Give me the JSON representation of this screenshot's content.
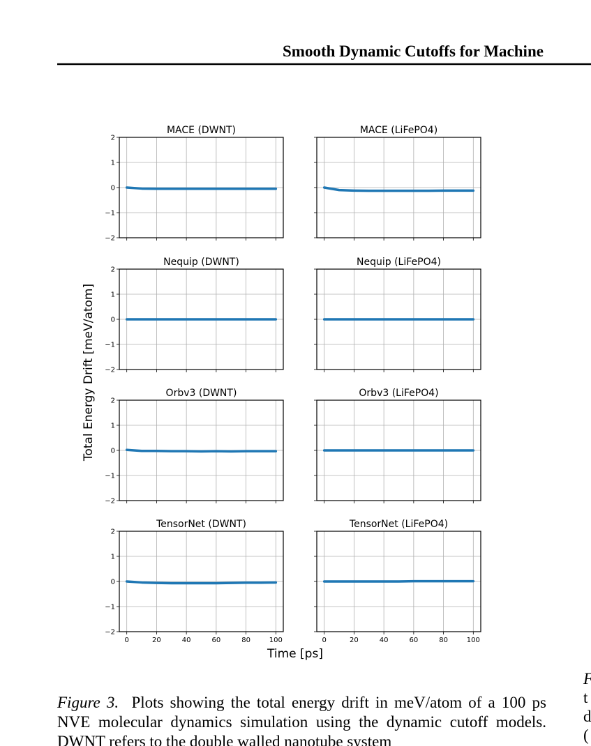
{
  "header": {
    "title": "Smooth Dynamic Cutoffs for Machine"
  },
  "figure": {
    "xlabel": "Time [ps]",
    "ylabel": "Total Energy Drift [meV/atom]"
  },
  "chart_data": [
    {
      "type": "line",
      "title": "MACE (DWNT)",
      "x": [
        0,
        10,
        20,
        30,
        40,
        50,
        60,
        70,
        80,
        90,
        100
      ],
      "series": [
        {
          "color": "#1f77b4",
          "values": [
            0,
            -0.04,
            -0.05,
            -0.05,
            -0.05,
            -0.05,
            -0.05,
            -0.05,
            -0.05,
            -0.05,
            -0.05
          ]
        }
      ],
      "xlim": [
        -5,
        105
      ],
      "ylim": [
        -2,
        2
      ],
      "xticks": [
        0,
        20,
        40,
        60,
        80,
        100
      ],
      "yticks": [
        {
          "value": -2,
          "label": "−2"
        },
        {
          "value": -1,
          "label": "−1"
        },
        0,
        1,
        2
      ],
      "grid": true,
      "show_xtick_labels": false,
      "show_ytick_labels": true
    },
    {
      "type": "line",
      "title": "MACE (LiFePO4)",
      "x": [
        0,
        10,
        20,
        30,
        40,
        50,
        60,
        70,
        80,
        90,
        100
      ],
      "series": [
        {
          "color": "#1f77b4",
          "values": [
            0,
            -0.1,
            -0.12,
            -0.13,
            -0.13,
            -0.13,
            -0.13,
            -0.13,
            -0.12,
            -0.12,
            -0.12
          ]
        }
      ],
      "xlim": [
        -5,
        105
      ],
      "ylim": [
        -2,
        2
      ],
      "xticks": [
        0,
        20,
        40,
        60,
        80,
        100
      ],
      "yticks": [
        {
          "value": -2,
          "label": "−2"
        },
        {
          "value": -1,
          "label": "−1"
        },
        0,
        1,
        2
      ],
      "grid": true,
      "show_xtick_labels": false,
      "show_ytick_labels": false
    },
    {
      "type": "line",
      "title": "Nequip (DWNT)",
      "x": [
        0,
        10,
        20,
        30,
        40,
        50,
        60,
        70,
        80,
        90,
        100
      ],
      "series": [
        {
          "color": "#1f77b4",
          "values": [
            0,
            0,
            0,
            0,
            0,
            0,
            0,
            0,
            0,
            0,
            0
          ]
        }
      ],
      "xlim": [
        -5,
        105
      ],
      "ylim": [
        -2,
        2
      ],
      "xticks": [
        0,
        20,
        40,
        60,
        80,
        100
      ],
      "yticks": [
        {
          "value": -2,
          "label": "−2"
        },
        {
          "value": -1,
          "label": "−1"
        },
        0,
        1,
        2
      ],
      "grid": true,
      "show_xtick_labels": false,
      "show_ytick_labels": true
    },
    {
      "type": "line",
      "title": "Nequip (LiFePO4)",
      "x": [
        0,
        10,
        20,
        30,
        40,
        50,
        60,
        70,
        80,
        90,
        100
      ],
      "series": [
        {
          "color": "#1f77b4",
          "values": [
            0,
            0,
            0,
            0,
            0,
            0,
            0,
            0,
            0,
            0,
            0
          ]
        }
      ],
      "xlim": [
        -5,
        105
      ],
      "ylim": [
        -2,
        2
      ],
      "xticks": [
        0,
        20,
        40,
        60,
        80,
        100
      ],
      "yticks": [
        {
          "value": -2,
          "label": "−2"
        },
        {
          "value": -1,
          "label": "−1"
        },
        0,
        1,
        2
      ],
      "grid": true,
      "show_xtick_labels": false,
      "show_ytick_labels": false
    },
    {
      "type": "line",
      "title": "Orbv3 (DWNT)",
      "x": [
        0,
        10,
        20,
        30,
        40,
        50,
        60,
        70,
        80,
        90,
        100
      ],
      "series": [
        {
          "color": "#1f77b4",
          "values": [
            0.02,
            -0.02,
            -0.02,
            -0.03,
            -0.03,
            -0.04,
            -0.03,
            -0.04,
            -0.03,
            -0.03,
            -0.03
          ]
        }
      ],
      "xlim": [
        -5,
        105
      ],
      "ylim": [
        -2,
        2
      ],
      "xticks": [
        0,
        20,
        40,
        60,
        80,
        100
      ],
      "yticks": [
        {
          "value": -2,
          "label": "−2"
        },
        {
          "value": -1,
          "label": "−1"
        },
        0,
        1,
        2
      ],
      "grid": true,
      "show_xtick_labels": false,
      "show_ytick_labels": true
    },
    {
      "type": "line",
      "title": "Orbv3 (LiFePO4)",
      "x": [
        0,
        10,
        20,
        30,
        40,
        50,
        60,
        70,
        80,
        90,
        100
      ],
      "series": [
        {
          "color": "#1f77b4",
          "values": [
            0,
            0,
            0,
            0,
            0,
            0,
            0,
            0,
            0,
            0,
            0
          ]
        }
      ],
      "xlim": [
        -5,
        105
      ],
      "ylim": [
        -2,
        2
      ],
      "xticks": [
        0,
        20,
        40,
        60,
        80,
        100
      ],
      "yticks": [
        {
          "value": -2,
          "label": "−2"
        },
        {
          "value": -1,
          "label": "−1"
        },
        0,
        1,
        2
      ],
      "grid": true,
      "show_xtick_labels": false,
      "show_ytick_labels": false
    },
    {
      "type": "line",
      "title": "TensorNet (DWNT)",
      "x": [
        0,
        10,
        20,
        30,
        40,
        50,
        60,
        70,
        80,
        90,
        100
      ],
      "series": [
        {
          "color": "#1f77b4",
          "values": [
            0,
            -0.04,
            -0.06,
            -0.07,
            -0.07,
            -0.07,
            -0.07,
            -0.06,
            -0.05,
            -0.05,
            -0.04
          ]
        }
      ],
      "xlim": [
        -5,
        105
      ],
      "ylim": [
        -2,
        2
      ],
      "xticks": [
        0,
        20,
        40,
        60,
        80,
        100
      ],
      "yticks": [
        {
          "value": -2,
          "label": "−2"
        },
        {
          "value": -1,
          "label": "−1"
        },
        0,
        1,
        2
      ],
      "grid": true,
      "show_xtick_labels": true,
      "show_ytick_labels": true
    },
    {
      "type": "line",
      "title": "TensorNet (LiFePO4)",
      "x": [
        0,
        10,
        20,
        30,
        40,
        50,
        60,
        70,
        80,
        90,
        100
      ],
      "series": [
        {
          "color": "#1f77b4",
          "values": [
            0,
            0,
            0,
            0,
            0,
            0,
            0.01,
            0.01,
            0.01,
            0.01,
            0.01
          ]
        }
      ],
      "xlim": [
        -5,
        105
      ],
      "ylim": [
        -2,
        2
      ],
      "xticks": [
        0,
        20,
        40,
        60,
        80,
        100
      ],
      "yticks": [
        {
          "value": -2,
          "label": "−2"
        },
        {
          "value": -1,
          "label": "−1"
        },
        0,
        1,
        2
      ],
      "grid": true,
      "show_xtick_labels": true,
      "show_ytick_labels": false
    }
  ],
  "caption": {
    "label": "Figure 3.",
    "text": "Plots showing the total energy drift in meV/atom of a 100 ps NVE molecular dynamics simulation using the dynamic cutoff models. DWNT refers to the double walled nanotube system"
  },
  "right_column": [
    "F",
    "t",
    "d",
    "("
  ]
}
